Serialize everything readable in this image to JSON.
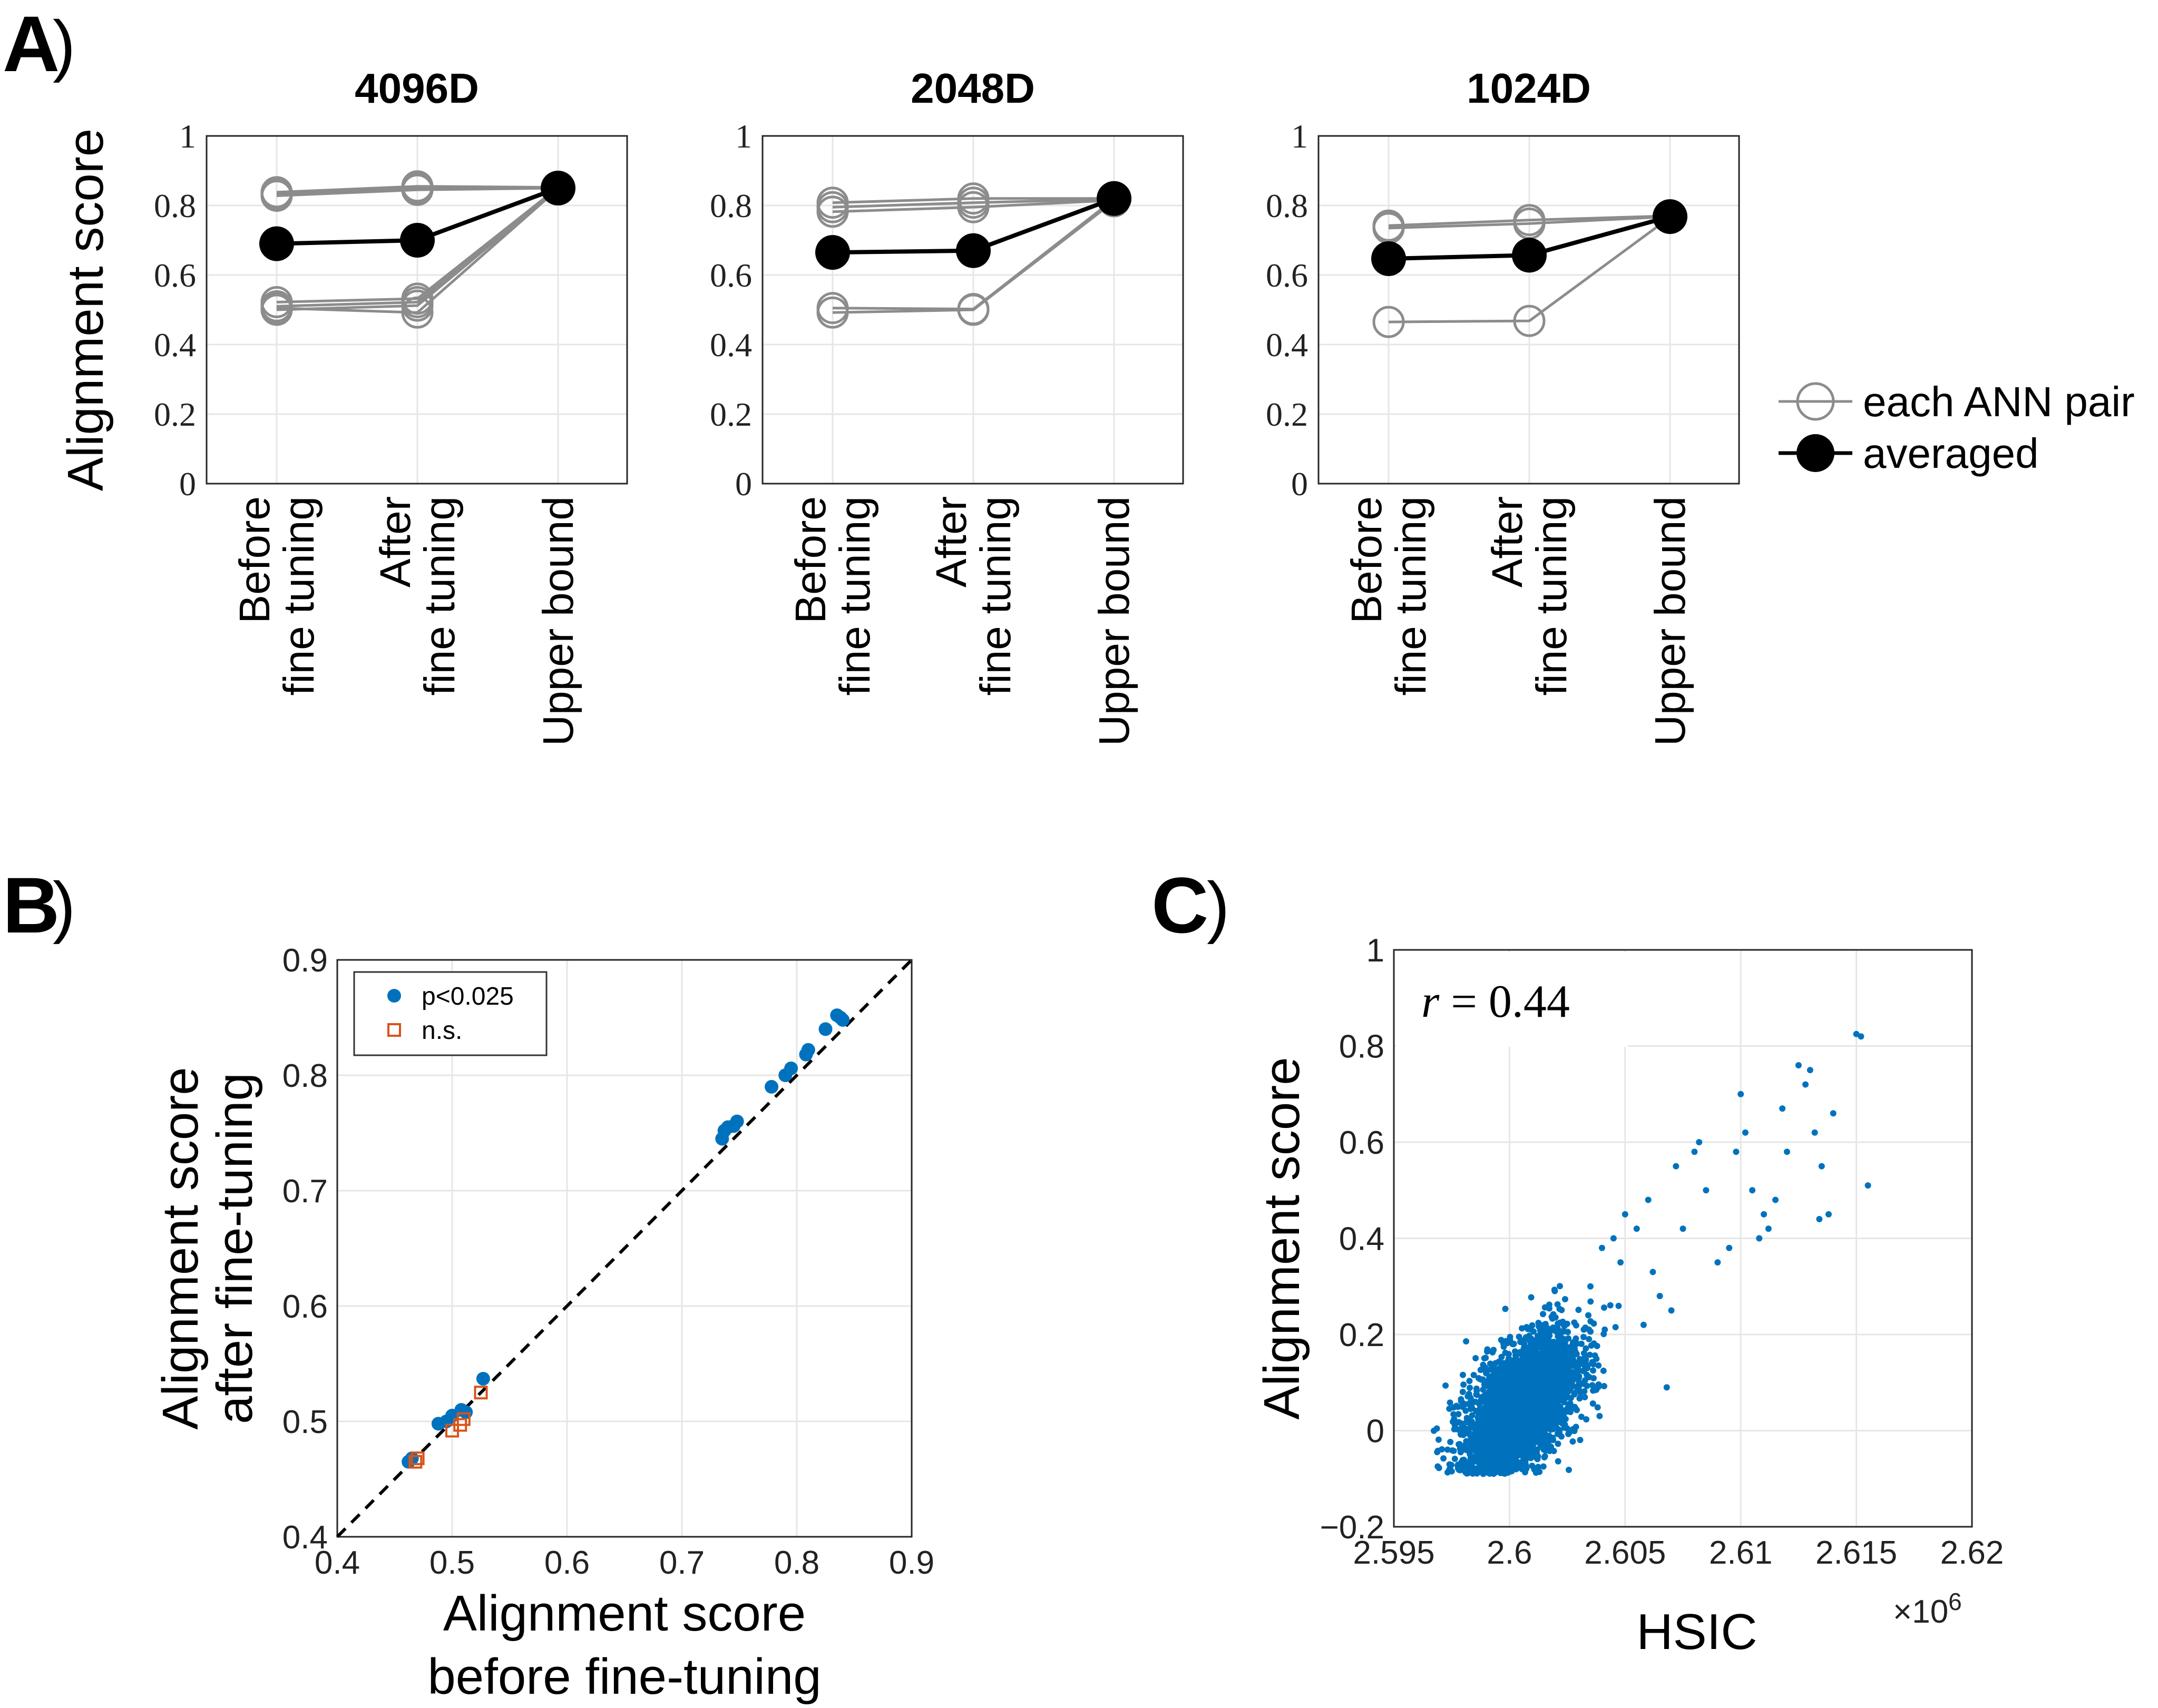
{
  "panel_labels": {
    "a": "A",
    "b": "B",
    "c": "C",
    "paren": ")"
  },
  "colors": {
    "gray": "#8c8c8c",
    "black": "#000000",
    "blue": "#0072bd",
    "orange": "#d95319"
  },
  "chart_data": [
    {
      "id": "A1",
      "type": "line",
      "title": "4096D",
      "ylabel": "Alignment score",
      "ylim": [
        0,
        1
      ],
      "yticks": [
        "0",
        "0.2",
        "0.4",
        "0.6",
        "0.8",
        "1"
      ],
      "categories": [
        [
          "Before",
          "fine tuning"
        ],
        [
          "After",
          "fine tuning"
        ],
        [
          "Upper bound"
        ]
      ],
      "pairs": [
        [
          0.838,
          0.855,
          0.852
        ],
        [
          0.828,
          0.845,
          0.85
        ],
        [
          0.835,
          0.85,
          0.851
        ],
        [
          0.522,
          0.532,
          0.852
        ],
        [
          0.51,
          0.522,
          0.85
        ],
        [
          0.5,
          0.512,
          0.849
        ],
        [
          0.505,
          0.492,
          0.848
        ]
      ],
      "averaged": [
        0.69,
        0.7,
        0.85
      ]
    },
    {
      "id": "A2",
      "type": "line",
      "title": "2048D",
      "ylabel": "",
      "ylim": [
        0,
        1
      ],
      "yticks": [
        "0",
        "0.2",
        "0.4",
        "0.6",
        "0.8",
        "1"
      ],
      "categories": [
        [
          "Before",
          "fine tuning"
        ],
        [
          "After",
          "fine tuning"
        ],
        [
          "Upper bound"
        ]
      ],
      "pairs": [
        [
          0.808,
          0.82,
          0.82
        ],
        [
          0.795,
          0.808,
          0.818
        ],
        [
          0.782,
          0.795,
          0.815
        ],
        [
          0.505,
          0.502,
          0.818
        ],
        [
          0.492,
          0.5,
          0.812
        ]
      ],
      "averaged": [
        0.665,
        0.67,
        0.82
      ]
    },
    {
      "id": "A3",
      "type": "line",
      "title": "1024D",
      "ylabel": "",
      "ylim": [
        0,
        1
      ],
      "yticks": [
        "0",
        "0.2",
        "0.4",
        "0.6",
        "0.8",
        "1"
      ],
      "categories": [
        [
          "Before",
          "fine tuning"
        ],
        [
          "After",
          "fine tuning"
        ],
        [
          "Upper bound"
        ]
      ],
      "pairs": [
        [
          0.742,
          0.758,
          0.77
        ],
        [
          0.735,
          0.748,
          0.768
        ],
        [
          0.465,
          0.468,
          0.766
        ]
      ],
      "averaged": [
        0.647,
        0.657,
        0.768
      ]
    },
    {
      "id": "B",
      "type": "scatter",
      "xlabel": [
        "Alignment score",
        "before fine-tuning"
      ],
      "ylabel": [
        "Alignment score",
        "after fine-tuning"
      ],
      "xlim": [
        0.4,
        0.9
      ],
      "ylim": [
        0.4,
        0.9
      ],
      "xticks": [
        "0.4",
        "0.5",
        "0.6",
        "0.7",
        "0.8",
        "0.9"
      ],
      "yticks": [
        "0.4",
        "0.5",
        "0.6",
        "0.7",
        "0.8",
        "0.9"
      ],
      "series": [
        {
          "name": "p<0.025",
          "marker": "dot",
          "x": [
            0.462,
            0.465,
            0.488,
            0.495,
            0.5,
            0.508,
            0.512,
            0.527,
            0.735,
            0.737,
            0.74,
            0.745,
            0.748,
            0.778,
            0.79,
            0.795,
            0.808,
            0.81,
            0.825,
            0.835,
            0.838,
            0.84
          ],
          "y": [
            0.465,
            0.468,
            0.498,
            0.5,
            0.505,
            0.51,
            0.508,
            0.537,
            0.745,
            0.752,
            0.755,
            0.756,
            0.76,
            0.79,
            0.8,
            0.806,
            0.818,
            0.822,
            0.84,
            0.852,
            0.85,
            0.848
          ]
        },
        {
          "name": "n.s.",
          "marker": "square",
          "x": [
            0.468,
            0.47,
            0.5,
            0.507,
            0.51,
            0.525
          ],
          "y": [
            0.465,
            0.468,
            0.492,
            0.497,
            0.502,
            0.525
          ]
        }
      ]
    },
    {
      "id": "C",
      "type": "scatter",
      "xlabel": "HSIC",
      "ylabel": "Alignment score",
      "xlim": [
        2.595,
        2.62
      ],
      "ylim": [
        -0.2,
        1
      ],
      "xticks": [
        "2.595",
        "2.6",
        "2.605",
        "2.61",
        "2.615",
        "2.62"
      ],
      "yticks": [
        "−0.2",
        "0",
        "0.2",
        "0.4",
        "0.6",
        "0.8",
        "1"
      ],
      "x_exponent_base": "×10",
      "x_exponent": "6",
      "annotation": "r = 0.44",
      "annotation_parts": {
        "var": "r",
        "rest": " = 0.44"
      },
      "cloud": {
        "x_center": 2.6005,
        "x_spread": 0.0012,
        "y_center": 0.05,
        "y_spread": 0.07,
        "count": 3500
      },
      "outliers": {
        "x": [
          2.6035,
          2.604,
          2.6045,
          2.605,
          2.6055,
          2.606,
          2.6062,
          2.6065,
          2.607,
          2.6072,
          2.6075,
          2.608,
          2.6082,
          2.6085,
          2.609,
          2.6095,
          2.61,
          2.6102,
          2.6105,
          2.611,
          2.6112,
          2.6115,
          2.612,
          2.6125,
          2.6128,
          2.613,
          2.6132,
          2.6135,
          2.6138,
          2.614,
          2.615,
          2.6152,
          2.6155,
          2.6058,
          2.6048,
          2.6068,
          2.6118,
          2.6108,
          2.6098,
          2.6134
        ],
        "y": [
          0.3,
          0.38,
          0.4,
          0.45,
          0.42,
          0.48,
          0.33,
          0.28,
          0.25,
          0.55,
          0.42,
          0.58,
          0.6,
          0.5,
          0.35,
          0.38,
          0.7,
          0.62,
          0.5,
          0.45,
          0.42,
          0.48,
          0.58,
          0.76,
          0.72,
          0.75,
          0.62,
          0.55,
          0.45,
          0.66,
          0.825,
          0.82,
          0.51,
          0.22,
          0.35,
          0.09,
          0.67,
          0.4,
          0.58,
          0.44
        ]
      }
    }
  ],
  "legend_a": {
    "items": [
      "each ANN pair",
      "averaged"
    ]
  }
}
